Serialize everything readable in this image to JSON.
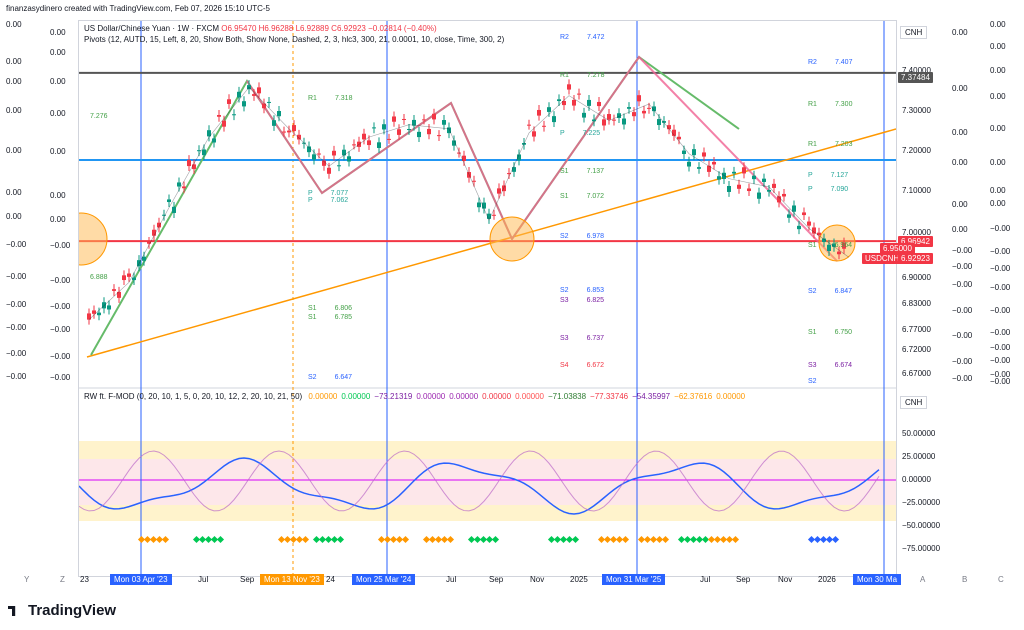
{
  "header": {
    "text": "finanzasydinero created with TradingView.com, Feb 07, 2026 15:10 UTC-5"
  },
  "symbol": {
    "name": "US Dollar/Chinese Yuan · 1W · FXCM",
    "open": "O6.95470",
    "high": "H6.96288",
    "low": "L6.92889",
    "close": "C6.92923",
    "change": "−0.02814 (−0.40%)"
  },
  "pivots_indicator": "Pivots (12, AUTD, 15, Left, 8, 20, Show Both, Show None, Dashed, 2, 3, hlc3, 300, 21, 0.0001, 10, close, Time, 300, 2)",
  "oscillator": {
    "name": "RW ft. F-MOD (0, 20, 10, 1, 5, 0, 20, 10, 12, 2, 20, 10, 21, 50)",
    "values": [
      {
        "v": "0.00000",
        "c": "#ff9800"
      },
      {
        "v": "0.00000",
        "c": "#00c853"
      },
      {
        "v": "−73.21319",
        "c": "#7b1fa2"
      },
      {
        "v": "0.00000",
        "c": "#9c27b0"
      },
      {
        "v": "0.00000",
        "c": "#9c27b0"
      },
      {
        "v": "0.00000",
        "c": "#f23645"
      },
      {
        "v": "0.00000",
        "c": "#ff5252"
      },
      {
        "v": "−71.03838",
        "c": "#2e7d32"
      },
      {
        "v": "−77.33746",
        "c": "#f23645"
      },
      {
        "v": "−54.35997",
        "c": "#7b1fa2"
      },
      {
        "v": "−62.37616",
        "c": "#ff9800"
      },
      {
        "v": "0.00000",
        "c": "#ff9800"
      }
    ]
  },
  "currency_label": "CNH",
  "price_axis": [
    "7.40000",
    "7.30000",
    "7.20000",
    "7.10000",
    "7.00000",
    "6.90000",
    "6.83000",
    "6.77000",
    "6.72000",
    "6.67000"
  ],
  "price_tags": [
    {
      "text": "7.37484",
      "color": "#555555"
    },
    {
      "text": "6.96942",
      "color": "#f23645"
    },
    {
      "text": "6.95000",
      "color": "#f23645"
    },
    {
      "text": "USDCNH",
      "color": "#f23645"
    },
    {
      "text": "6.92923",
      "color": "#f23645"
    }
  ],
  "osc_axis": [
    "50.00000",
    "25.00000",
    "0.00000",
    "−25.00000",
    "−50.00000",
    "−75.00000"
  ],
  "left_scale": [
    "0.00",
    "0.00",
    "0.00",
    "0.00",
    "0.00",
    "0.00",
    "0.00",
    "−0.00",
    "−0.00",
    "−0.00",
    "−0.00",
    "−0.00",
    "−0.00",
    "−0.00",
    "−0.00"
  ],
  "left_scale2": [
    "0.00",
    "0.00",
    "0.00",
    "0.00",
    "0.00",
    "0.00",
    "0.00",
    "−0.00",
    "−0.00",
    "−0.00",
    "−0.00",
    "−0.00",
    "−0.00",
    "−0.00"
  ],
  "right_scale": [
    "0.00",
    "0.00",
    "0.00",
    "0.00",
    "0.00",
    "0.00",
    "0.00",
    "0.00",
    "−0.00",
    "−0.00",
    "−0.00",
    "−0.00",
    "−0.00",
    "−0.00",
    "−0.00",
    "−0.00",
    "−0.00",
    "−0.00"
  ],
  "right_scale2": [
    "0.00",
    "0.00",
    "0.00",
    "0.00",
    "0.00",
    "0.00",
    "−0.00",
    "−0.00",
    "−0.00",
    "−0.00",
    "−0.00",
    "−0.00",
    "−0.00",
    "−0.00"
  ],
  "pivot_labels": [
    {
      "t": "R2",
      "v": "7.472",
      "c": "#2962ff"
    },
    {
      "t": "R1",
      "v": "7.318",
      "c": "#43a047"
    },
    {
      "t": "",
      "v": "7.276",
      "c": "#43a047"
    },
    {
      "t": "R1",
      "v": "7.278",
      "c": "#43a047"
    },
    {
      "t": "P",
      "v": "7.225",
      "c": "#26a69a"
    },
    {
      "t": "S1",
      "v": "7.137",
      "c": "#43a047"
    },
    {
      "t": "P",
      "v": "7.077",
      "c": "#26a69a"
    },
    {
      "t": "P",
      "v": "7.062",
      "c": "#26a69a"
    },
    {
      "t": "S1",
      "v": "7.072",
      "c": "#43a047"
    },
    {
      "t": "S2",
      "v": "6.978",
      "c": "#2962ff"
    },
    {
      "t": "",
      "v": "6.888",
      "c": "#43a047"
    },
    {
      "t": "S2",
      "v": "6.853",
      "c": "#2962ff"
    },
    {
      "t": "S3",
      "v": "6.825",
      "c": "#7b1fa2"
    },
    {
      "t": "S1",
      "v": "6.806",
      "c": "#43a047"
    },
    {
      "t": "S1",
      "v": "6.785",
      "c": "#43a047"
    },
    {
      "t": "S3",
      "v": "6.737",
      "c": "#7b1fa2"
    },
    {
      "t": "S4",
      "v": "6.672",
      "c": "#f23645"
    },
    {
      "t": "S2",
      "v": "6.647",
      "c": "#2962ff"
    },
    {
      "t": "R2",
      "v": "7.407",
      "c": "#2962ff"
    },
    {
      "t": "R1",
      "v": "7.300",
      "c": "#43a047"
    },
    {
      "t": "R1",
      "v": "7.203",
      "c": "#43a047"
    },
    {
      "t": "P",
      "v": "7.127",
      "c": "#26a69a"
    },
    {
      "t": "P",
      "v": "7.090",
      "c": "#26a69a"
    },
    {
      "t": "S1",
      "v": "6.964",
      "c": "#43a047"
    },
    {
      "t": "S2",
      "v": "6.847",
      "c": "#2962ff"
    },
    {
      "t": "S1",
      "v": "6.750",
      "c": "#43a047"
    },
    {
      "t": "S3",
      "v": "6.674",
      "c": "#7b1fa2"
    },
    {
      "t": "S2",
      "v": "",
      "c": "#2962ff"
    }
  ],
  "time_axis": {
    "labels": [
      "23",
      "Jul",
      "Sep",
      "24",
      "Jul",
      "Sep",
      "Nov",
      "2025",
      "Jul",
      "Sep",
      "Nov",
      "2026"
    ],
    "selected": [
      {
        "text": "Mon 03 Apr '23",
        "color": "#2962ff"
      },
      {
        "text": "Mon 13 Nov '23",
        "color": "#ff9800"
      },
      {
        "text": "Mon 25 Mar '24",
        "color": "#2962ff"
      },
      {
        "text": "Mon 31 Mar '25",
        "color": "#2962ff"
      },
      {
        "text": "Mon 30 Ma",
        "color": "#2962ff"
      }
    ]
  },
  "letters": [
    "Y",
    "Z",
    "A",
    "B",
    "C"
  ],
  "brand": "TradingView",
  "chart_data": {
    "type": "line",
    "title": "US Dollar/Chinese Yuan · 1W · FXCM",
    "x": [
      "2023-01",
      "2023-03",
      "2023-05",
      "2023-07",
      "2023-09",
      "2023-11",
      "2024-01",
      "2024-03",
      "2024-05",
      "2024-07",
      "2024-09",
      "2024-11",
      "2025-01",
      "2025-03",
      "2025-05",
      "2025-07",
      "2025-09",
      "2025-11",
      "2026-01",
      "2026-02"
    ],
    "series": [
      {
        "name": "USDCNH",
        "values": [
          6.78,
          6.87,
          7.05,
          7.22,
          7.34,
          7.24,
          7.15,
          7.22,
          7.25,
          7.24,
          7.02,
          7.23,
          7.32,
          7.26,
          7.3,
          7.18,
          7.12,
          7.1,
          7.0,
          6.93
        ]
      }
    ],
    "ylim": [
      6.62,
      7.5
    ],
    "horizontal_lines": [
      {
        "value": 7.37484,
        "color": "#555555"
      },
      {
        "value": 6.96942,
        "color": "#f23645"
      }
    ]
  }
}
